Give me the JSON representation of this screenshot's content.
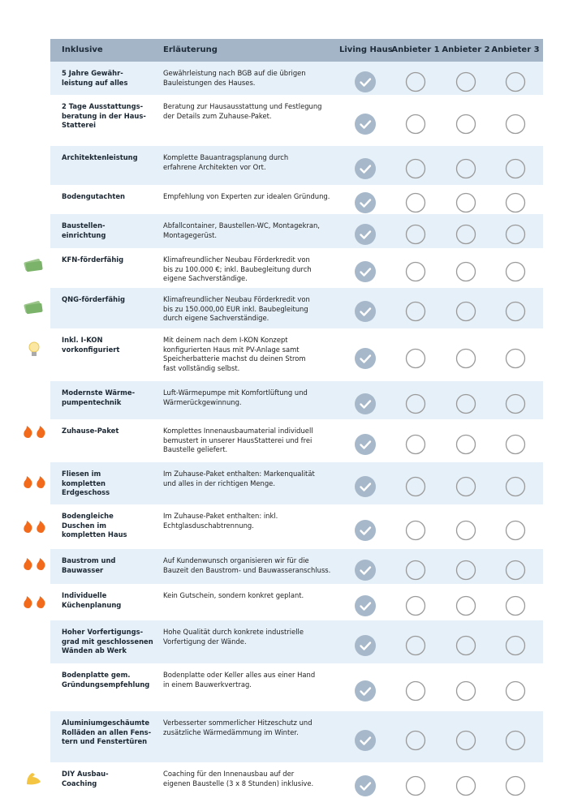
{
  "header": {
    "columns": [
      "Inklusive",
      "Erläuterung"
    ]
  },
  "providers": [
    {
      "name": "Living Haus",
      "included": true
    },
    {
      "name": "Anbieter 1",
      "included": false
    },
    {
      "name": "Anbieter 2",
      "included": false
    },
    {
      "name": "Anbieter 3",
      "included": false
    }
  ],
  "rows": [
    {
      "label": "5 Jahre Gewähr-\nleistung auf alles",
      "description": "Gewährleistung nach BGB auf die übrigen\nBauleistungen des Hauses."
    },
    {
      "label": "2 Tage Ausstattungs-\nberatung in der Haus-\nStatterei",
      "description": "Beratung zur Hausausstattung und Festlegung\nder Details zum Zuhause-Paket."
    },
    {
      "label": "Architektenleistung",
      "description": "Komplette Bauantragsplanung durch\nerfahrene Architekten vor Ort."
    },
    {
      "label": "Bodengutachten",
      "description": "Empfehlung von Experten zur idealen Gründung."
    },
    {
      "label": "Baustellen-\neinrichtung",
      "description": "Abfallcontainer, Baustellen-WC, Montagekran,\nMontagegerüst."
    },
    {
      "label": "KFN-förderfähig",
      "description": "Klimafreundlicher Neubau Förderkredit von\nbis zu 100.000 €; inkl. Baubegleitung durch\neigene Sachverständige."
    },
    {
      "label": "QNG-förderfähig",
      "description": "Klimafreundlicher Neubau Förderkredit von\nbis zu 150.000,00 EUR inkl. Baubegleitung\ndurch eigene Sachverständige."
    },
    {
      "label": "Inkl. I-KON\nvorkonfiguriert",
      "description": "Mit deinem nach dem I-KON Konzept\nkonfigurierten Haus mit PV-Anlage samt\nSpeicherbatterie machst du deinen Strom\nfast vollständig selbst."
    },
    {
      "label": "Modernste Wärme-\npumpentechnik",
      "description": "Luft-Wärmepumpe mit Komfortlüftung und\nWärmerückgewinnung."
    },
    {
      "label": "Zuhause-Paket",
      "description": "Komplettes Innenausbaumaterial individuell\nbemustert in unserer HausStatterei und frei\nBaustelle geliefert."
    },
    {
      "label": "Fliesen im\nkompletten\nErdgeschoss",
      "description": "Im Zuhause-Paket enthalten: Markenqualität\nund alles in der richtigen Menge."
    },
    {
      "label": "Bodengleiche\nDuschen im\nkompletten Haus",
      "description": "Im Zuhause-Paket enthalten: inkl.\nEchtglasduschabtrennung."
    },
    {
      "label": "Baustrom und\nBauwasser",
      "description": "Auf Kundenwunsch organisieren wir für die\nBauzeit den Baustrom- und Bauwasseranschluss."
    },
    {
      "label": "Individuelle\nKüchenplanung",
      "description": "Kein Gutschein, sondern konkret geplant."
    },
    {
      "label": "Hoher Vorfertigungs-\ngrad mit geschlossenen\nWänden ab Werk",
      "description": "Hohe Qualität durch konkrete industrielle\nVorfertigung der Wände."
    },
    {
      "label": "Bodenplatte gem.\nGründungsempfehlung",
      "description": "Bodenplatte oder Keller alles aus einer Hand\nin einem Bauwerkvertrag."
    },
    {
      "label": "Aluminiumgeschäumte\nRolläden an allen Fens-\ntern und Fenstertüren",
      "description": "Verbesserter sommerlicher Hitzeschutz und\nzusätzliche Wärmedämmung im Winter."
    },
    {
      "label": "DIY Ausbau-\nCoaching",
      "description": "Coaching für den Innenausbau auf der\neigenen Baustelle (3 x 8 Stunden) inklusive."
    }
  ]
}
